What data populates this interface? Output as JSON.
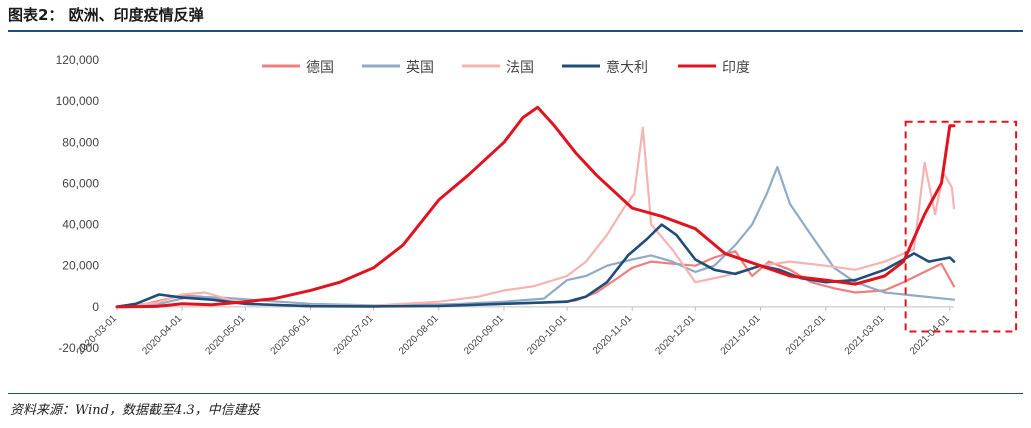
{
  "header": {
    "title": "图表2： 欧洲、印度疫情反弹"
  },
  "footer": {
    "source": "资料来源：Wind，数据截至4.3，中信建投"
  },
  "chart_data": {
    "type": "line",
    "title": "",
    "xlabel": "",
    "ylabel": "",
    "ylim": [
      -20000,
      120000
    ],
    "yticks": [
      "-20,000",
      "0",
      "20,000",
      "40,000",
      "60,000",
      "80,000",
      "100,000",
      "120,000"
    ],
    "xticks": [
      "2020-03-01",
      "2020-04-01",
      "2020-05-01",
      "2020-06-01",
      "2020-07-01",
      "2020-08-01",
      "2020-09-01",
      "2020-10-01",
      "2020-11-01",
      "2020-12-01",
      "2021-01-01",
      "2021-02-01",
      "2021-03-01",
      "2021-04-01"
    ],
    "grid": false,
    "legend": "top-center",
    "highlight_box": {
      "x_start": "2021-03-11",
      "x_end": "2021-04-04",
      "y_start": 90000,
      "y_end": -12000
    },
    "series": [
      {
        "name": "德国",
        "color": "#ef7f7f",
        "width": 2.2,
        "x": [
          "2020-03-01",
          "2020-03-15",
          "2020-04-01",
          "2020-04-10",
          "2020-04-25",
          "2020-05-10",
          "2020-06-01",
          "2020-07-01",
          "2020-08-01",
          "2020-09-01",
          "2020-09-20",
          "2020-10-05",
          "2020-10-15",
          "2020-10-25",
          "2020-11-01",
          "2020-11-10",
          "2020-11-20",
          "2020-12-01",
          "2020-12-10",
          "2020-12-20",
          "2020-12-28",
          "2021-01-05",
          "2021-01-15",
          "2021-01-25",
          "2021-02-05",
          "2021-02-15",
          "2021-03-01",
          "2021-03-10",
          "2021-03-20",
          "2021-03-28",
          "2021-04-03"
        ],
        "y": [
          100,
          1500,
          5500,
          5000,
          2500,
          1000,
          500,
          400,
          1200,
          1500,
          2000,
          3000,
          7000,
          14000,
          19000,
          22000,
          21000,
          20000,
          24000,
          27000,
          15000,
          22000,
          18000,
          12000,
          9000,
          7000,
          8000,
          12000,
          17000,
          21000,
          10000
        ]
      },
      {
        "name": "英国",
        "color": "#8fabc6",
        "width": 2.2,
        "x": [
          "2020-03-01",
          "2020-03-20",
          "2020-04-05",
          "2020-04-20",
          "2020-05-10",
          "2020-06-01",
          "2020-07-01",
          "2020-08-01",
          "2020-09-01",
          "2020-09-20",
          "2020-10-01",
          "2020-10-10",
          "2020-10-20",
          "2020-11-01",
          "2020-11-10",
          "2020-11-20",
          "2020-12-01",
          "2020-12-10",
          "2020-12-20",
          "2020-12-28",
          "2021-01-04",
          "2021-01-09",
          "2021-01-15",
          "2021-01-25",
          "2021-02-05",
          "2021-02-15",
          "2021-03-01",
          "2021-03-15",
          "2021-04-03"
        ],
        "y": [
          0,
          1200,
          5000,
          4500,
          3000,
          1500,
          700,
          1000,
          2500,
          4000,
          13000,
          15000,
          20000,
          23000,
          25000,
          22000,
          17000,
          20000,
          30000,
          40000,
          55000,
          68000,
          50000,
          35000,
          19000,
          12000,
          7000,
          5500,
          3500
        ]
      },
      {
        "name": "法国",
        "color": "#f5b3b3",
        "width": 2.2,
        "x": [
          "2020-03-01",
          "2020-03-20",
          "2020-04-01",
          "2020-04-12",
          "2020-04-25",
          "2020-05-10",
          "2020-06-01",
          "2020-07-01",
          "2020-08-01",
          "2020-08-20",
          "2020-09-01",
          "2020-09-15",
          "2020-10-01",
          "2020-10-10",
          "2020-10-20",
          "2020-10-28",
          "2020-11-02",
          "2020-11-06",
          "2020-11-10",
          "2020-11-20",
          "2020-12-01",
          "2020-12-15",
          "2021-01-01",
          "2021-01-15",
          "2021-02-01",
          "2021-02-15",
          "2021-03-01",
          "2021-03-15",
          "2021-03-20",
          "2021-03-25",
          "2021-03-29",
          "2021-04-02",
          "2021-04-03"
        ],
        "y": [
          0,
          2000,
          6000,
          7000,
          3000,
          1000,
          500,
          600,
          2500,
          5000,
          8000,
          10000,
          15000,
          22000,
          35000,
          48000,
          55000,
          87000,
          40000,
          28000,
          12000,
          15000,
          20000,
          22000,
          20000,
          18000,
          22000,
          28000,
          70000,
          45000,
          65000,
          58000,
          48000
        ]
      },
      {
        "name": "意大利",
        "color": "#1f4e79",
        "width": 2.6,
        "x": [
          "2020-03-01",
          "2020-03-10",
          "2020-03-21",
          "2020-04-01",
          "2020-04-15",
          "2020-05-01",
          "2020-06-01",
          "2020-07-01",
          "2020-08-01",
          "2020-09-01",
          "2020-10-01",
          "2020-10-10",
          "2020-10-20",
          "2020-10-30",
          "2020-11-08",
          "2020-11-15",
          "2020-11-22",
          "2020-12-01",
          "2020-12-10",
          "2020-12-20",
          "2021-01-01",
          "2021-01-10",
          "2021-01-20",
          "2021-02-01",
          "2021-02-15",
          "2021-03-01",
          "2021-03-10",
          "2021-03-15",
          "2021-03-22",
          "2021-04-01",
          "2021-04-03"
        ],
        "y": [
          100,
          1500,
          6000,
          4500,
          3500,
          1500,
          300,
          200,
          400,
          1500,
          2500,
          5000,
          12000,
          25000,
          33000,
          40000,
          35000,
          23000,
          18000,
          16000,
          20000,
          18000,
          14000,
          12000,
          13000,
          18000,
          23000,
          26000,
          22000,
          24000,
          22000
        ]
      },
      {
        "name": "印度",
        "color": "#e0141e",
        "width": 3,
        "x": [
          "2020-03-01",
          "2020-03-20",
          "2020-04-01",
          "2020-04-15",
          "2020-05-01",
          "2020-05-15",
          "2020-06-01",
          "2020-06-15",
          "2020-07-01",
          "2020-07-15",
          "2020-08-01",
          "2020-08-15",
          "2020-09-01",
          "2020-09-10",
          "2020-09-17",
          "2020-09-25",
          "2020-10-05",
          "2020-10-15",
          "2020-11-01",
          "2020-11-15",
          "2020-12-01",
          "2020-12-15",
          "2021-01-01",
          "2021-01-15",
          "2021-02-01",
          "2021-02-15",
          "2021-03-01",
          "2021-03-10",
          "2021-03-20",
          "2021-03-28",
          "2021-04-01",
          "2021-04-03"
        ],
        "y": [
          0,
          200,
          1500,
          1000,
          2500,
          4000,
          8000,
          12000,
          19000,
          30000,
          52000,
          64000,
          80000,
          92000,
          97000,
          88000,
          75000,
          64000,
          48000,
          44000,
          38000,
          26000,
          20000,
          15000,
          13000,
          11000,
          15000,
          22000,
          45000,
          60000,
          88000,
          88000
        ]
      }
    ]
  }
}
